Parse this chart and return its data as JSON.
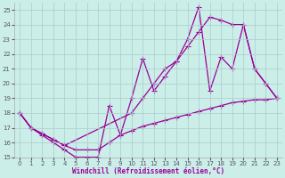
{
  "xlabel": "Windchill (Refroidissement éolien,°C)",
  "bg_color": "#cceee8",
  "grid_color": "#aacccc",
  "line_color": "#990099",
  "xlim": [
    -0.5,
    23.5
  ],
  "ylim": [
    15,
    25.5
  ],
  "ytick_min": 15,
  "ytick_max": 25,
  "xticks": [
    0,
    1,
    2,
    3,
    4,
    5,
    6,
    7,
    8,
    9,
    10,
    11,
    12,
    13,
    14,
    15,
    16,
    17,
    18,
    19,
    20,
    21,
    22,
    23
  ],
  "yticks": [
    15,
    16,
    17,
    18,
    19,
    20,
    21,
    22,
    23,
    24,
    25
  ],
  "line1_x": [
    0,
    1,
    2,
    3,
    4,
    5,
    6,
    7,
    8,
    9,
    10,
    11,
    12,
    13,
    14,
    15,
    16,
    17,
    18,
    19,
    20,
    21,
    22,
    23
  ],
  "line1_y": [
    18.0,
    17.0,
    16.6,
    16.2,
    15.8,
    15.5,
    15.5,
    15.5,
    16.0,
    16.5,
    16.8,
    17.1,
    17.3,
    17.5,
    17.7,
    17.9,
    18.1,
    18.3,
    18.5,
    18.7,
    18.8,
    18.9,
    18.9,
    19.0
  ],
  "line2_x": [
    0,
    1,
    2,
    3,
    4,
    5,
    6,
    7,
    8,
    9,
    10,
    11,
    12,
    13,
    14,
    15,
    16,
    17,
    18,
    19,
    20,
    21,
    22,
    23
  ],
  "line2_y": [
    18.0,
    17.0,
    16.5,
    16.0,
    15.5,
    15.0,
    15.0,
    15.0,
    18.5,
    16.5,
    19.0,
    21.7,
    19.5,
    20.5,
    21.5,
    23.0,
    25.2,
    19.5,
    21.8,
    21.0,
    24.0,
    21.0,
    20.0,
    19.0
  ],
  "line3_x": [
    0,
    1,
    2,
    3,
    4,
    10,
    11,
    12,
    13,
    14,
    15,
    16,
    17,
    18,
    19,
    20,
    21,
    22,
    23
  ],
  "line3_y": [
    18.0,
    17.0,
    16.6,
    16.2,
    15.8,
    18.0,
    19.0,
    20.0,
    21.0,
    21.5,
    22.5,
    23.5,
    24.5,
    24.3,
    24.0,
    24.0,
    21.0,
    20.0,
    19.0
  ],
  "marker": "+",
  "markersize": 4,
  "linewidth": 0.9
}
